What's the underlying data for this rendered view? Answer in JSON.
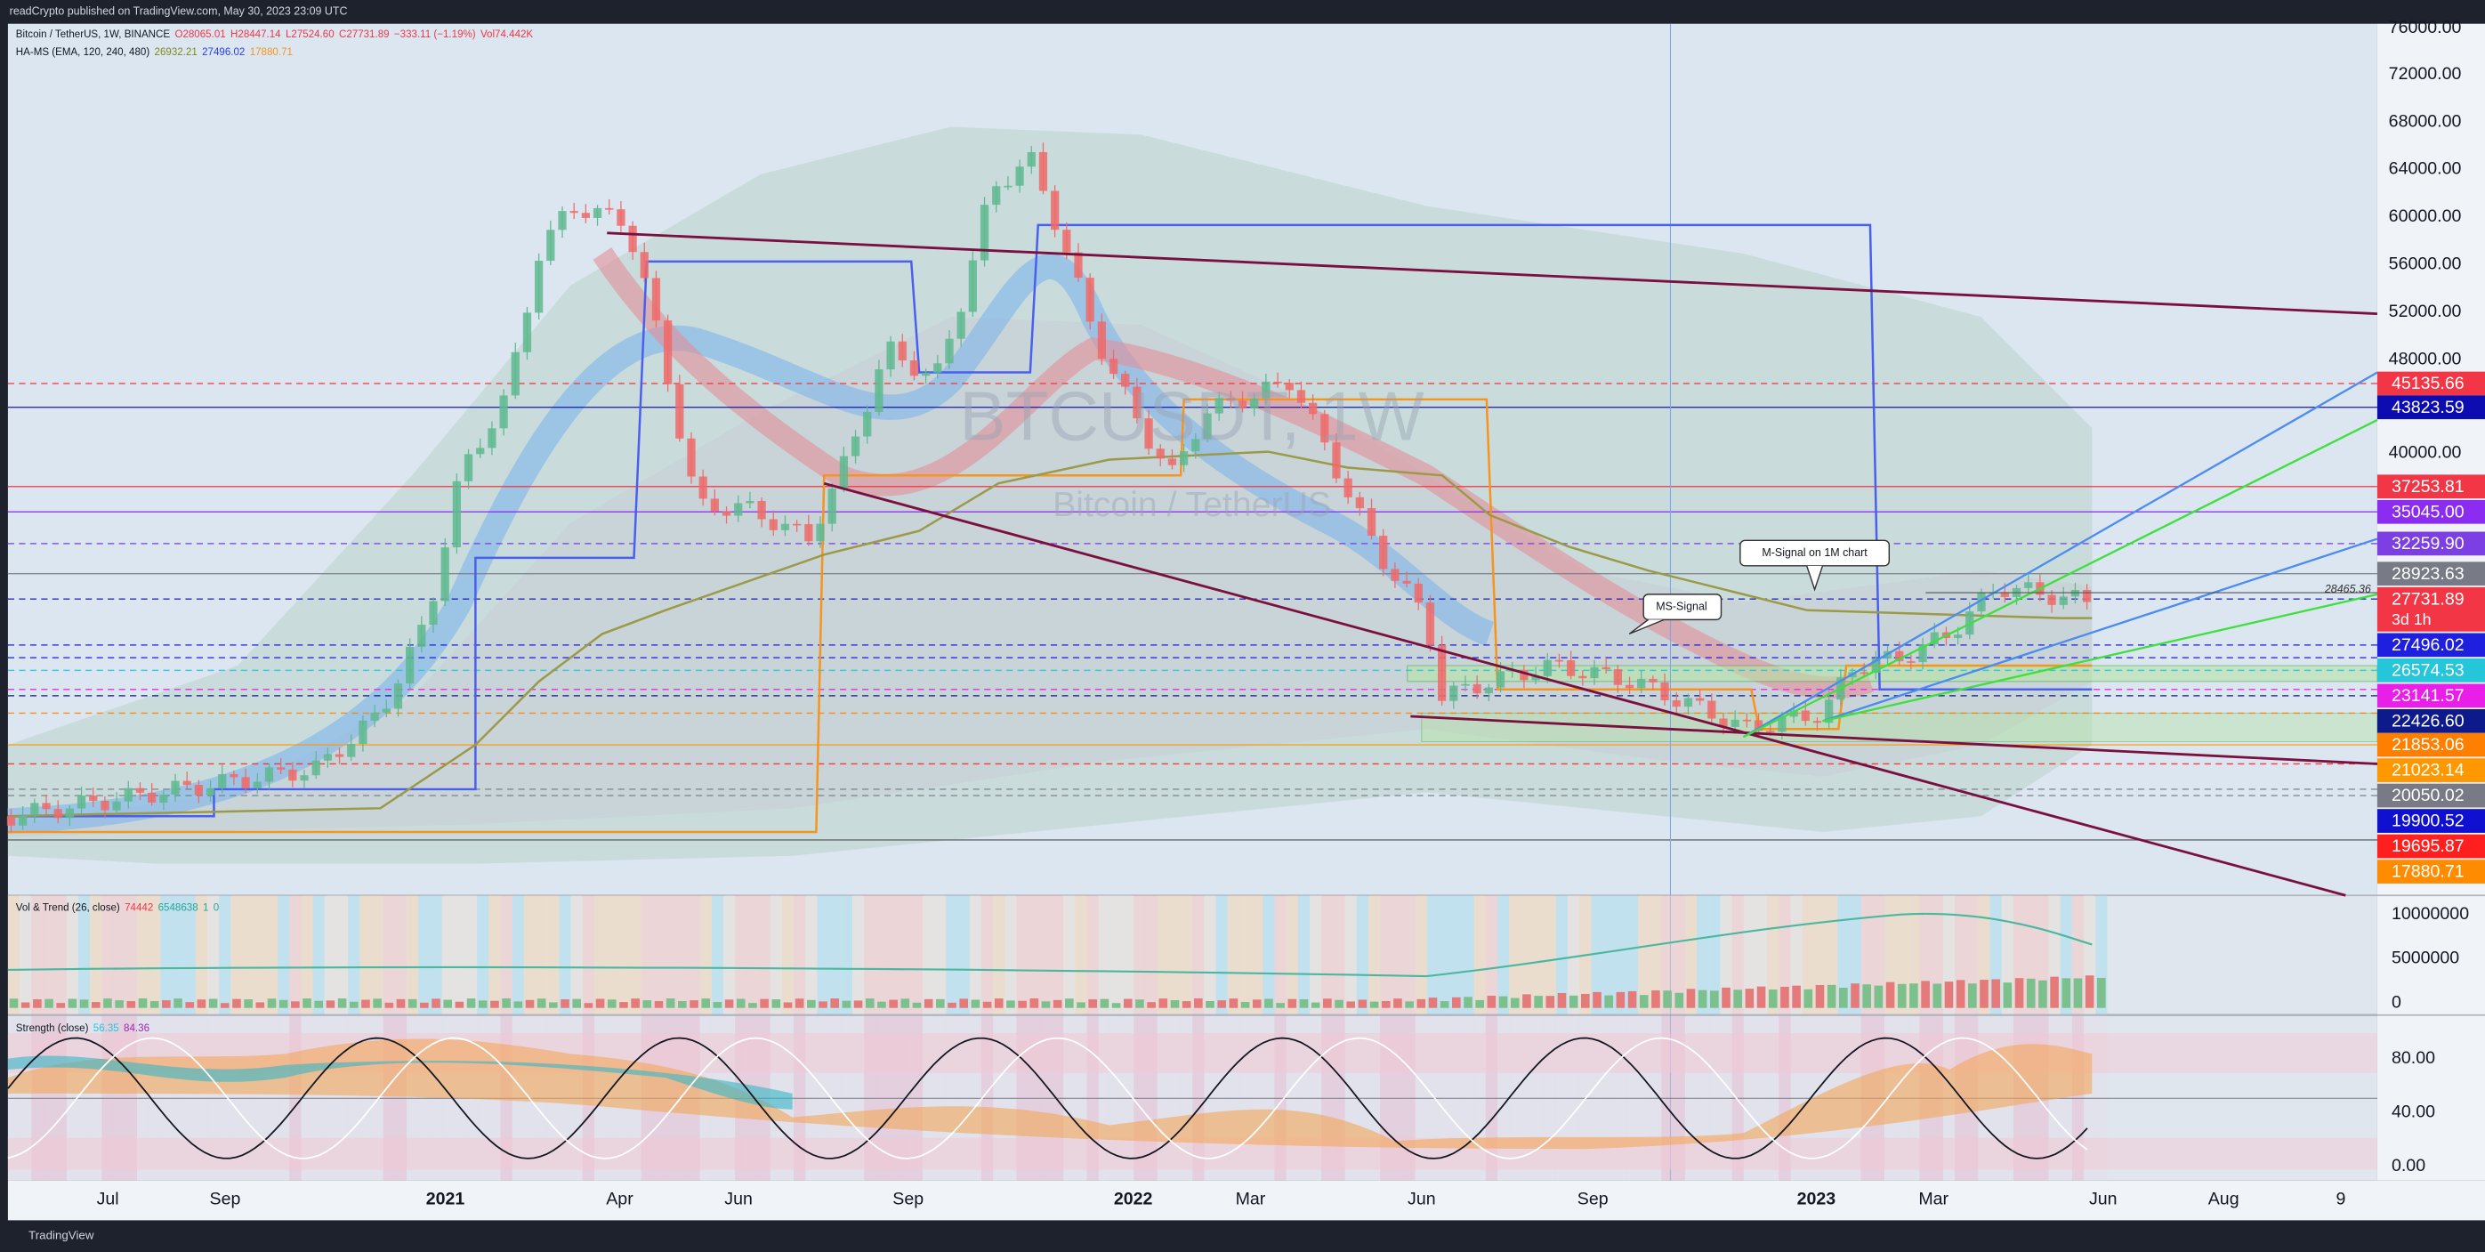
{
  "header": {
    "publisher": "readCrypto published on TradingView.com, May 30, 2023 23:09 UTC"
  },
  "legend": {
    "symbol": "Bitcoin / TetherUS, 1W, BINANCE",
    "ohlc": [
      "O28065.01",
      "H28447.14",
      "L27524.60",
      "C27731.89",
      "−333.11 (−1.19%)"
    ],
    "volume": "Vol74.442K"
  },
  "indicator": {
    "name": "HA-MS (EMA, 120, 240, 480)",
    "values": [
      "26932.21",
      "27496.02",
      "17880.71"
    ]
  },
  "watermark": {
    "symbol": "BTCUSDT, 1W",
    "description": "Bitcoin / TetherUS"
  },
  "annotations": [
    "M-Signal on 1M chart",
    "MS-Signal"
  ],
  "last_line_label": "28465.36",
  "price_axis": {
    "ticks": [
      "76000.00",
      "72000.00",
      "68000.00",
      "64000.00",
      "60000.00",
      "56000.00",
      "52000.00",
      "48000.00",
      "40000.00"
    ],
    "labels": [
      "45135.66",
      "43823.59",
      "37253.81",
      "35045.00",
      "32259.90",
      "28923.63",
      "27731.89",
      "27496.02",
      "26574.53",
      "23141.57",
      "22426.60",
      "21853.06",
      "21023.14",
      "20050.02",
      "19900.52",
      "19695.87",
      "17880.71"
    ],
    "countdown": "3d 1h"
  },
  "volume_pane": {
    "title": "Vol & Trend (26, close)",
    "values": [
      "74442",
      "6548638",
      "1",
      "0"
    ],
    "ticks": [
      "10000000",
      "5000000",
      "0"
    ]
  },
  "strength_pane": {
    "title": "Strength (close)",
    "values": [
      "56.35",
      "84.36"
    ],
    "ticks": [
      "80.00",
      "40.00",
      "0.00"
    ]
  },
  "time_axis": [
    "Jul",
    "Sep",
    "2021",
    "Apr",
    "Jun",
    "Sep",
    "2022",
    "Mar",
    "Jun",
    "Sep",
    "2023",
    "Mar",
    "Jun",
    "Aug",
    "9"
  ],
  "footer": "TradingView"
}
